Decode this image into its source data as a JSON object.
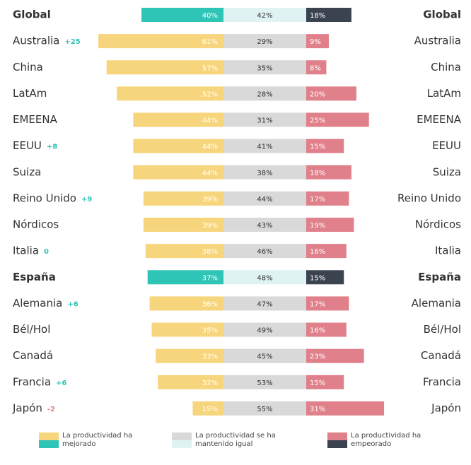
{
  "chart_data": {
    "type": "diverging-bar",
    "categories": [
      "Global",
      "Australia",
      "China",
      "LatAm",
      "EMEENA",
      "EEUU",
      "Suiza",
      "Reino Unido",
      "Nórdicos",
      "Italia",
      "España",
      "Alemania",
      "Bél/Hol",
      "Canadá",
      "Francia",
      "Japón"
    ],
    "annotations": [
      null,
      "+25",
      null,
      null,
      null,
      "+8",
      null,
      "+9",
      null,
      "0",
      null,
      "+6",
      null,
      null,
      "+6",
      "-2"
    ],
    "highlight": [
      0,
      10
    ],
    "series": [
      {
        "name": "La productividad ha mejorado",
        "color": "#f6d57c",
        "highlight_color": "#2ec4b6",
        "values": [
          40,
          61,
          57,
          52,
          44,
          44,
          44,
          39,
          39,
          38,
          37,
          36,
          35,
          33,
          32,
          15
        ],
        "value_labels": [
          "40%",
          "61%",
          "57%",
          "52%",
          "44%",
          "44%",
          "44%",
          "39%",
          "39%",
          "38%",
          "37%",
          "36%",
          "35%",
          "33%",
          "32%",
          "15%"
        ]
      },
      {
        "name": "La productividad se ha mantenido igual",
        "color": "#d9d9d9",
        "highlight_color": "#dff3f3",
        "values": [
          42,
          29,
          35,
          28,
          31,
          41,
          38,
          44,
          43,
          46,
          48,
          47,
          49,
          45,
          53,
          55
        ],
        "value_labels": [
          "42%",
          "29%",
          "35%",
          "28%",
          "31%",
          "41%",
          "38%",
          "44%",
          "43%",
          "46%",
          "48%",
          "47%",
          "49%",
          "45%",
          "53%",
          "55%"
        ]
      },
      {
        "name": "La productividad ha empeorado",
        "color": "#e0808a",
        "highlight_color": "#3b4350",
        "values": [
          18,
          9,
          8,
          20,
          25,
          15,
          18,
          17,
          19,
          16,
          15,
          17,
          16,
          23,
          15,
          31
        ],
        "value_labels": [
          "18%",
          "9%",
          "8%",
          "20%",
          "25%",
          "15%",
          "18%",
          "17%",
          "19%",
          "16%",
          "15%",
          "17%",
          "16%",
          "23%",
          "15%",
          "31%"
        ]
      }
    ]
  }
}
